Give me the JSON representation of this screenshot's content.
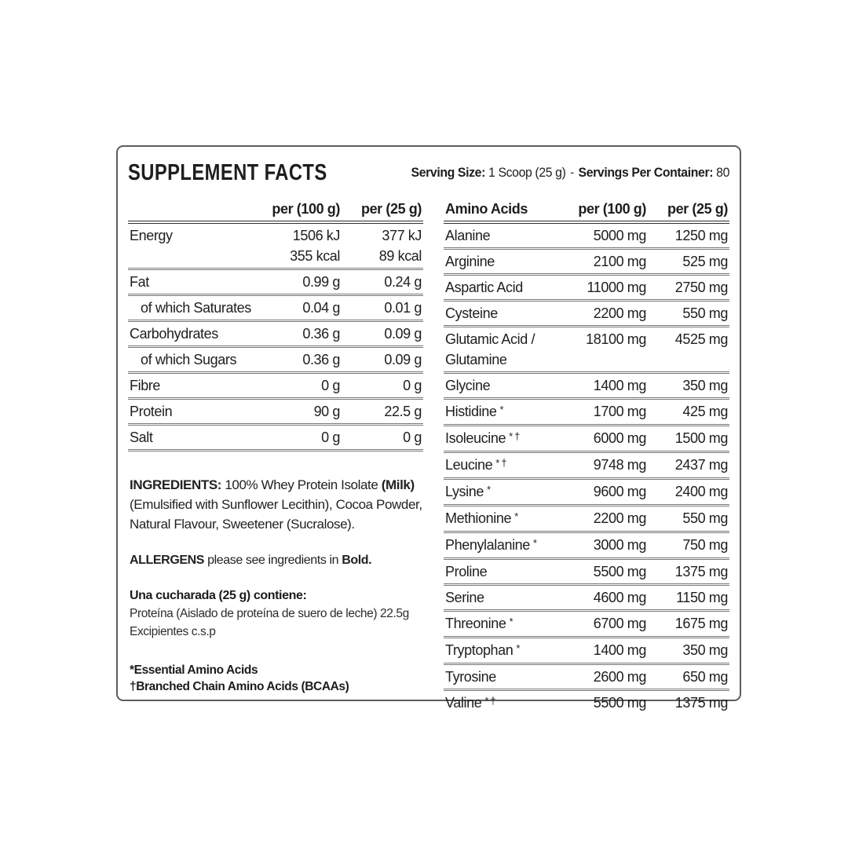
{
  "colors": {
    "text": "#1e1e1e",
    "border": "#5d5d5d",
    "row_line": "#787878",
    "head_line": "#2d2d2d"
  },
  "panel": {
    "title": "SUPPLEMENT FACTS",
    "serving": {
      "size_label": "Serving Size:",
      "size_value": "1 Scoop (25 g)",
      "separator": "-",
      "container_label": "Servings Per Container:",
      "container_value": "80"
    },
    "nutrition": {
      "col_100": "per (100 g)",
      "col_25": "per (25 g)",
      "rows": [
        {
          "label": "Energy",
          "v100": "1506 kJ",
          "v25": "377 kJ",
          "no_sep": true
        },
        {
          "label": "",
          "v100": "355 kcal",
          "v25": "89 kcal",
          "continuation": true
        },
        {
          "label": "Fat",
          "v100": "0.99 g",
          "v25": "0.24 g"
        },
        {
          "label": "of which Saturates",
          "v100": "0.04 g",
          "v25": "0.01 g",
          "indent": true
        },
        {
          "label": "Carbohydrates",
          "v100": "0.36 g",
          "v25": "0.09 g"
        },
        {
          "label": "of which Sugars",
          "v100": "0.36 g",
          "v25": "0.09 g",
          "indent": true
        },
        {
          "label": "Fibre",
          "v100": "0 g",
          "v25": "0 g"
        },
        {
          "label": "Protein",
          "v100": "90 g",
          "v25": "22.5 g"
        },
        {
          "label": "Salt",
          "v100": "0 g",
          "v25": "0 g"
        }
      ]
    },
    "ingredients": {
      "heading": "INGREDIENTS:",
      "seg_1": " 100% Whey Protein Isolate ",
      "seg_milk": "(Milk)",
      "seg_2": " (Emulsified with Sunflower Lecithin), Cocoa Powder, Natural Flavour, Sweetener (Sucralose)."
    },
    "allergens": {
      "heading": "ALLERGENS",
      "text": " please see ingredients in ",
      "bold_word": "Bold."
    },
    "spanish": {
      "heading": "Una cucharada (25 g) contiene:",
      "line1": "Proteína (Aislado de proteína de suero de leche) 22.5g",
      "line2": "Excipientes c.s.p"
    },
    "footnotes": [
      "*Essential Amino Acids",
      "†Branched Chain Amino Acids (BCAAs)"
    ],
    "amino": {
      "title": "Amino Acids",
      "col_100": "per (100 g)",
      "col_25": "per (25 g)",
      "rows": [
        {
          "name": "Alanine",
          "v100": "5000 mg",
          "v25": "1250 mg"
        },
        {
          "name": "Arginine",
          "v100": "2100 mg",
          "v25": "525 mg"
        },
        {
          "name": "Aspartic Acid",
          "v100": "11000 mg",
          "v25": "2750 mg"
        },
        {
          "name": "Cysteine",
          "v100": "2200 mg",
          "v25": "550 mg"
        },
        {
          "name": "Glutamic Acid /",
          "v100": "18100 mg",
          "v25": "4525 mg",
          "no_sep": true
        },
        {
          "name": "Glutamine",
          "v100": "",
          "v25": "",
          "continuation": true
        },
        {
          "name": "Glycine",
          "v100": "1400 mg",
          "v25": "350 mg"
        },
        {
          "name": "Histidine",
          "marks": "*",
          "v100": "1700 mg",
          "v25": "425 mg"
        },
        {
          "name": "Isoleucine",
          "marks": "*†",
          "v100": "6000 mg",
          "v25": "1500 mg"
        },
        {
          "name": "Leucine",
          "marks": "*†",
          "v100": "9748 mg",
          "v25": "2437 mg"
        },
        {
          "name": "Lysine",
          "marks": "*",
          "v100": "9600 mg",
          "v25": "2400 mg"
        },
        {
          "name": "Methionine",
          "marks": "*",
          "v100": "2200 mg",
          "v25": "550 mg"
        },
        {
          "name": "Phenylalanine",
          "marks": "*",
          "v100": "3000 mg",
          "v25": "750 mg"
        },
        {
          "name": "Proline",
          "v100": "5500 mg",
          "v25": "1375 mg"
        },
        {
          "name": "Serine",
          "v100": "4600 mg",
          "v25": "1150 mg"
        },
        {
          "name": "Threonine",
          "marks": "*",
          "v100": "6700 mg",
          "v25": "1675 mg"
        },
        {
          "name": "Tryptophan",
          "marks": "*",
          "v100": "1400 mg",
          "v25": "350 mg"
        },
        {
          "name": "Tyrosine",
          "v100": "2600 mg",
          "v25": "650 mg"
        },
        {
          "name": "Valine",
          "marks": "*†",
          "v100": "5500 mg",
          "v25": "1375 mg",
          "no_sep": true
        }
      ]
    }
  }
}
